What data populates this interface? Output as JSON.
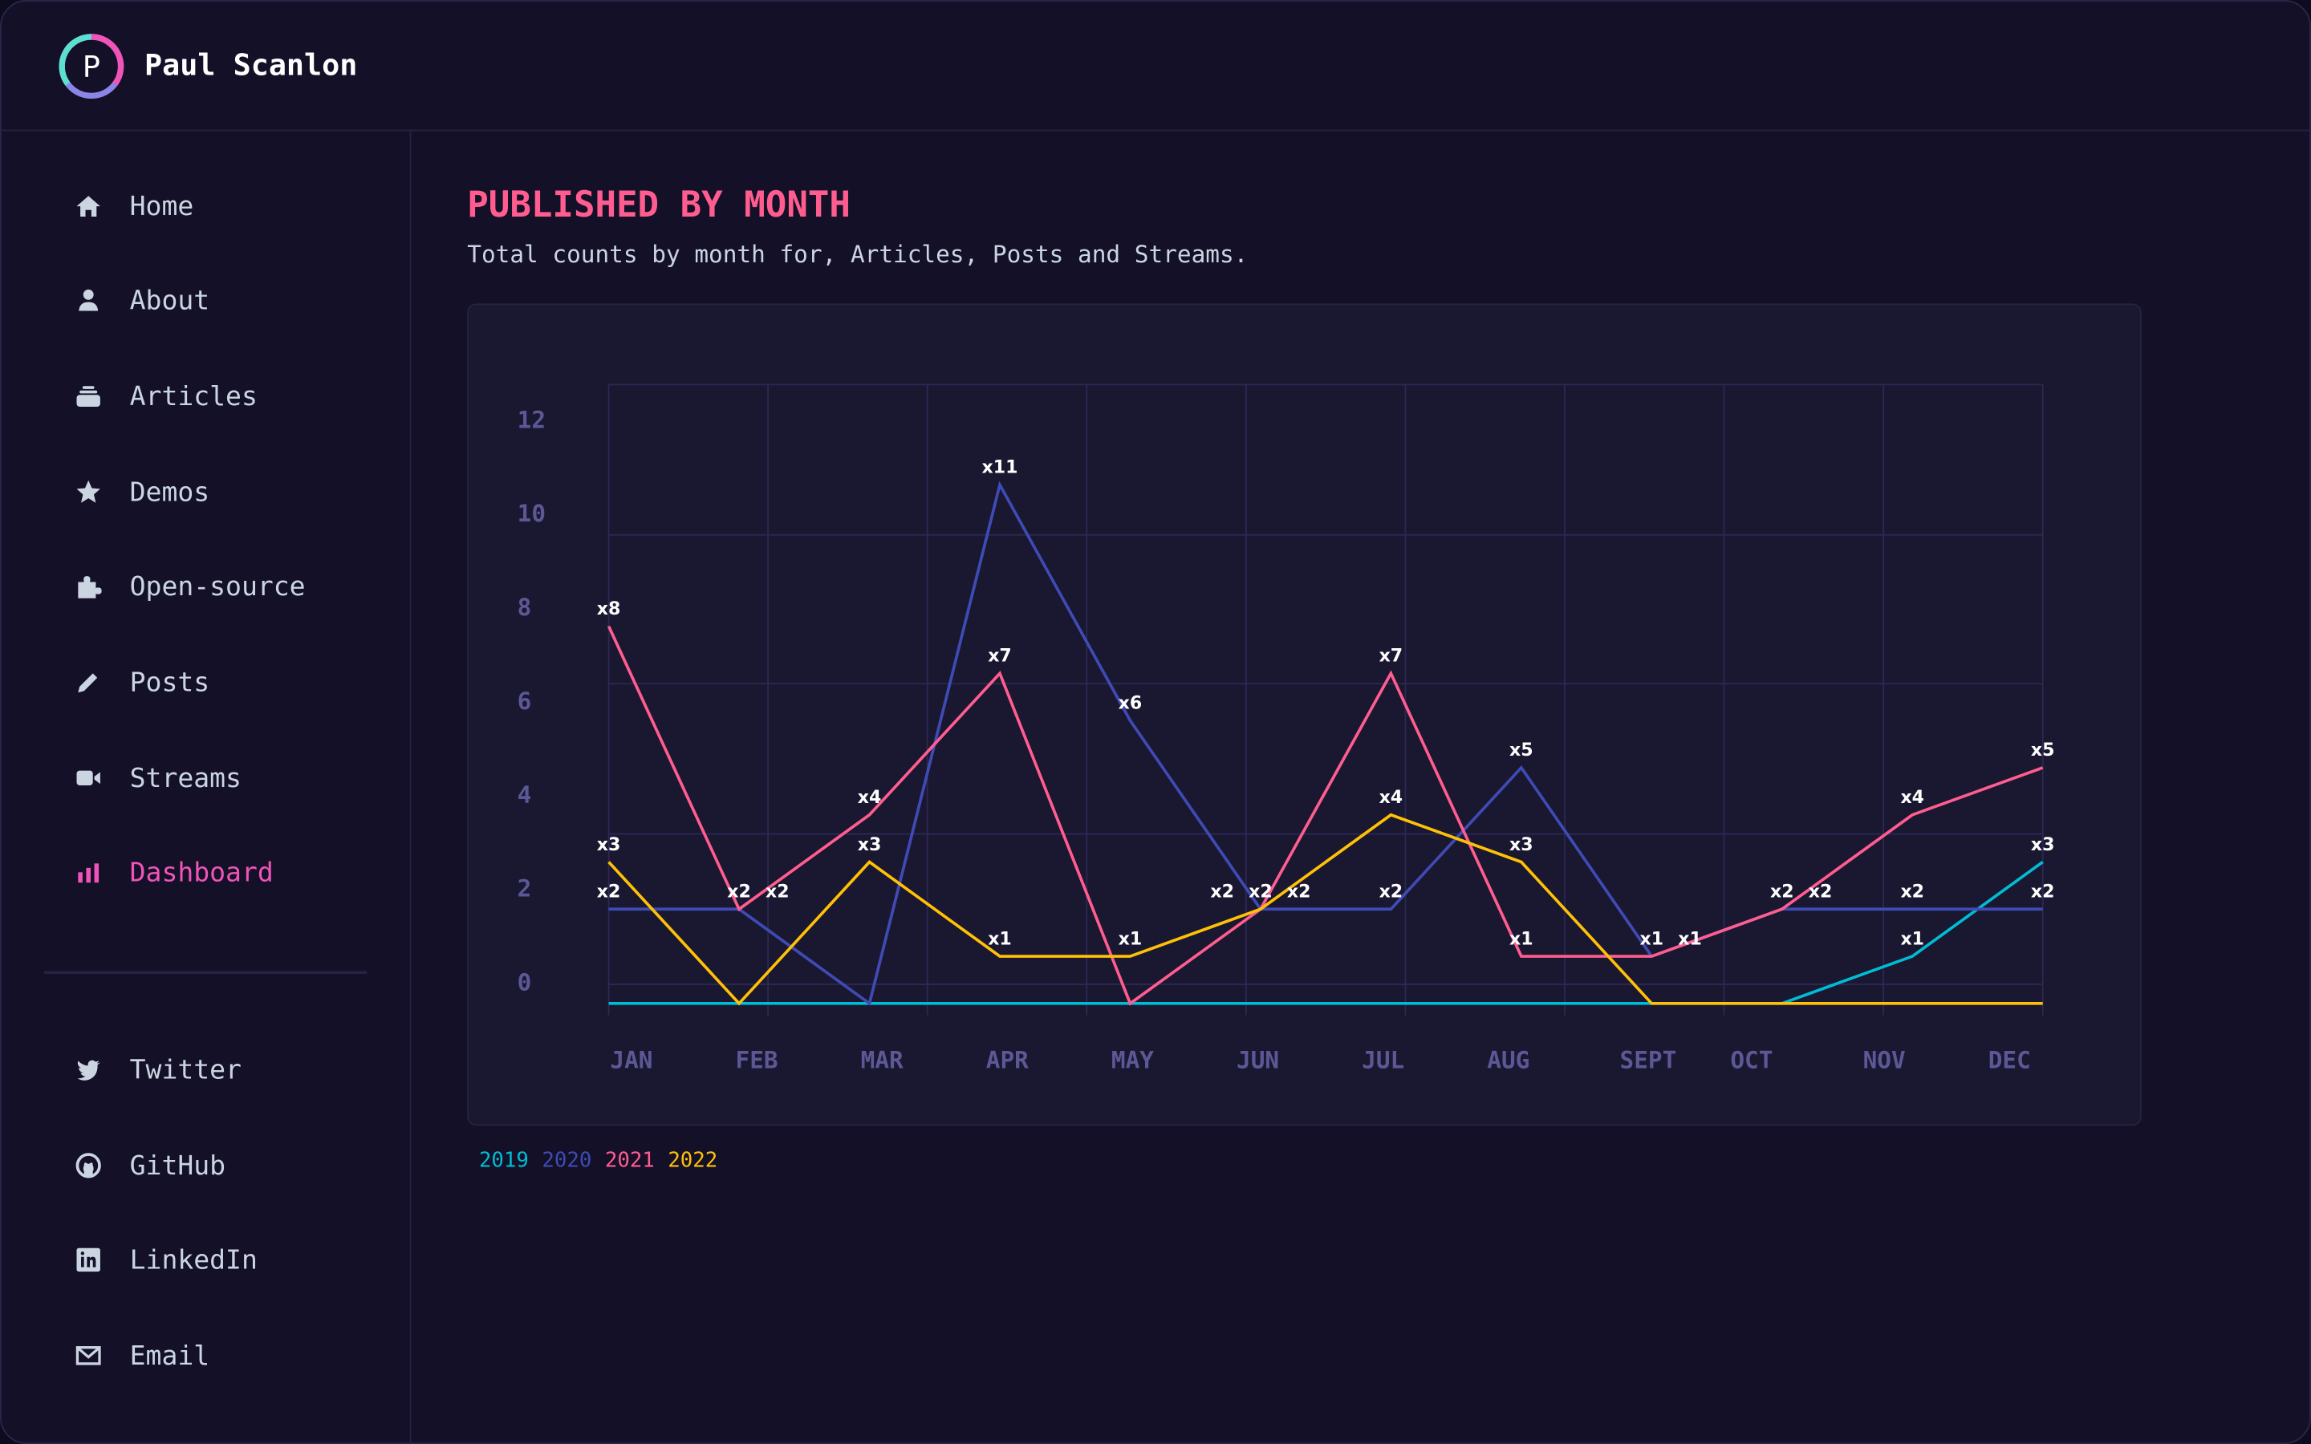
{
  "header": {
    "brand": "Paul Scanlon",
    "logo_letter": "P"
  },
  "sidebar": {
    "items": [
      {
        "label": "Home",
        "icon": "home-icon"
      },
      {
        "label": "About",
        "icon": "user-icon"
      },
      {
        "label": "Articles",
        "icon": "stack-icon"
      },
      {
        "label": "Demos",
        "icon": "star-icon"
      },
      {
        "label": "Open-source",
        "icon": "puzzle-icon"
      },
      {
        "label": "Posts",
        "icon": "pencil-icon"
      },
      {
        "label": "Streams",
        "icon": "video-icon"
      },
      {
        "label": "Dashboard",
        "icon": "bar-chart-icon",
        "active": true
      }
    ],
    "social": [
      {
        "label": "Twitter",
        "icon": "twitter-icon"
      },
      {
        "label": "GitHub",
        "icon": "github-icon"
      },
      {
        "label": "LinkedIn",
        "icon": "linkedin-icon"
      },
      {
        "label": "Email",
        "icon": "mail-icon"
      }
    ]
  },
  "main": {
    "title": "PUBLISHED BY MONTH",
    "subtitle": "Total counts by month for, Articles, Posts and Streams."
  },
  "colors": {
    "accent": "#ff5d8f",
    "active_nav": "#f054b9",
    "background": "#131028",
    "panel": "#1a1730"
  },
  "chart_data": {
    "type": "line",
    "categories": [
      "JAN",
      "FEB",
      "MAR",
      "APR",
      "MAY",
      "JUN",
      "JUL",
      "AUG",
      "SEPT",
      "OCT",
      "NOV",
      "DEC"
    ],
    "y_ticks": [
      "12",
      "10",
      "8",
      "6",
      "4",
      "2",
      "0"
    ],
    "ylim": [
      0,
      12
    ],
    "grid": true,
    "legend_placement": "bottom-left",
    "data_label_prefix": "x",
    "series": [
      {
        "name": "2019",
        "color": "#00bcd4",
        "values": [
          0,
          0,
          0,
          0,
          0,
          0,
          0,
          0,
          0,
          0,
          1,
          3
        ]
      },
      {
        "name": "2020",
        "color": "#3f4bb5",
        "values": [
          2,
          2,
          0,
          11,
          6,
          2,
          2,
          5,
          1,
          2,
          2,
          2
        ]
      },
      {
        "name": "2021",
        "color": "#ff5d8f",
        "values": [
          8,
          2,
          4,
          7,
          0,
          2,
          7,
          1,
          1,
          2,
          4,
          5
        ]
      },
      {
        "name": "2022",
        "color": "#ffc107",
        "values": [
          3,
          0,
          3,
          1,
          1,
          2,
          4,
          3,
          0,
          0,
          0,
          0
        ]
      }
    ]
  }
}
